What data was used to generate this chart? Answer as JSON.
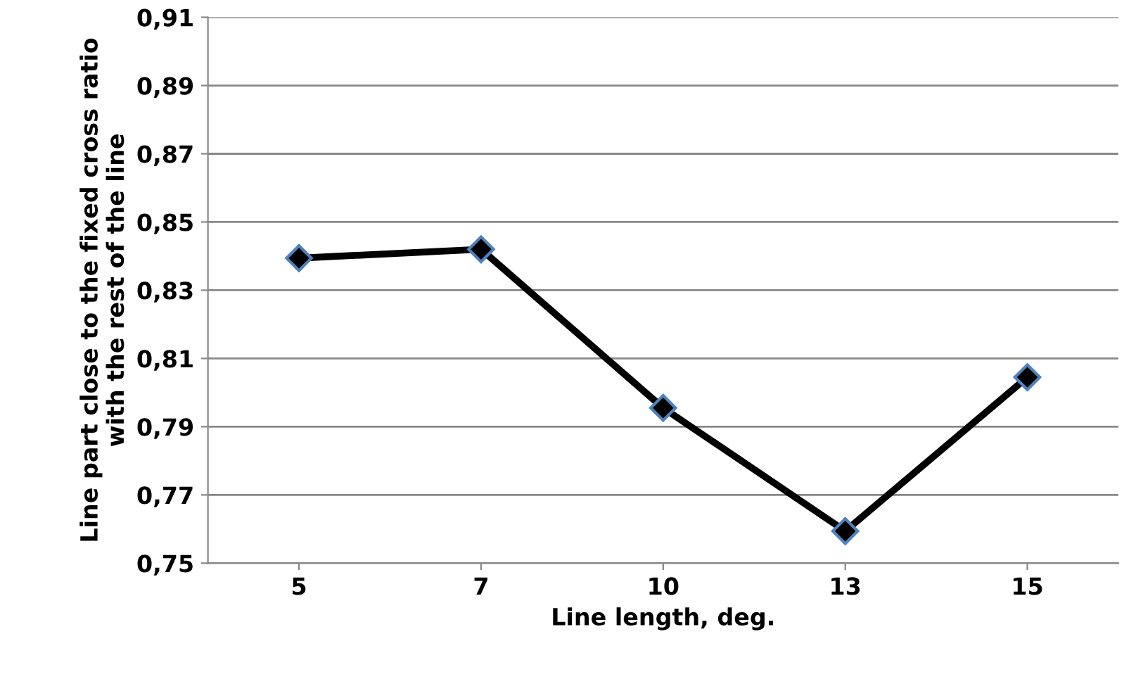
{
  "chart_data": {
    "type": "line",
    "xlabel": "Line length, deg.",
    "ylabel": "Line part close to the fixed cross ratio\nwith the rest of the line",
    "categories": [
      "5",
      "7",
      "10",
      "13",
      "15"
    ],
    "series": [
      {
        "color": "#000000",
        "values": [
          0.8394,
          0.842,
          0.7955,
          0.7594,
          0.8045
        ]
      }
    ],
    "ylim": [
      0.75,
      0.91
    ],
    "yticks": [
      {
        "value": 0.75,
        "label": "0,75"
      },
      {
        "value": 0.77,
        "label": "0,77"
      },
      {
        "value": 0.79,
        "label": "0,79"
      },
      {
        "value": 0.81,
        "label": "0,81"
      },
      {
        "value": 0.83,
        "label": "0,83"
      },
      {
        "value": 0.85,
        "label": "0,85"
      },
      {
        "value": 0.87,
        "label": "0,87"
      },
      {
        "value": 0.89,
        "label": "0,89"
      },
      {
        "value": 0.91,
        "label": "0,91"
      }
    ],
    "grid": "y",
    "marker": "diamond",
    "line_style": "solid"
  }
}
